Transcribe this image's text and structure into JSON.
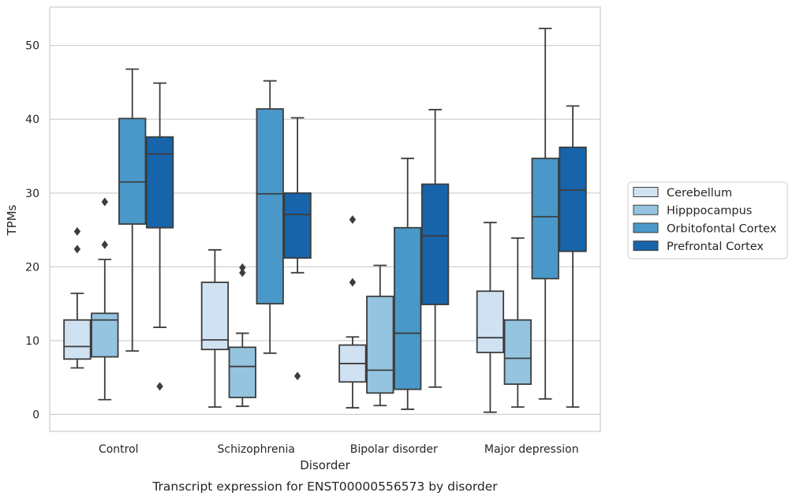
{
  "chart_data": {
    "type": "box",
    "caption": "Transcript expression for ENST00000556573 by disorder",
    "xlabel": "Disorder",
    "ylabel": "TPMs",
    "ylim": [
      -2.3,
      55.2
    ],
    "yticks": [
      0,
      10,
      20,
      30,
      40,
      50
    ],
    "grid": "horizontal",
    "legend_position": "right",
    "categories": [
      "Control",
      "Schizophrenia",
      "Bipolar disorder",
      "Major depression"
    ],
    "series": [
      {
        "name": "Cerebellum",
        "color": "#d0e1f2",
        "boxes": [
          {
            "whislo": 6.3,
            "q1": 7.5,
            "med": 9.2,
            "q3": 12.8,
            "whishi": 16.4,
            "fliers": [
              22.4,
              24.8
            ]
          },
          {
            "whislo": 1.0,
            "q1": 8.8,
            "med": 10.1,
            "q3": 17.9,
            "whishi": 22.3,
            "fliers": []
          },
          {
            "whislo": 0.9,
            "q1": 4.4,
            "med": 6.9,
            "q3": 9.4,
            "whishi": 10.5,
            "fliers": [
              17.9,
              26.4
            ]
          },
          {
            "whislo": 0.3,
            "q1": 8.4,
            "med": 10.4,
            "q3": 16.7,
            "whishi": 26.0,
            "fliers": []
          }
        ]
      },
      {
        "name": "Hipppocampus",
        "color": "#94c4df",
        "boxes": [
          {
            "whislo": 2.0,
            "q1": 7.8,
            "med": 12.8,
            "q3": 13.7,
            "whishi": 21.0,
            "fliers": [
              23.0,
              28.8
            ]
          },
          {
            "whislo": 1.1,
            "q1": 2.3,
            "med": 6.5,
            "q3": 9.1,
            "whishi": 11.0,
            "fliers": [
              19.2,
              19.9
            ]
          },
          {
            "whislo": 1.2,
            "q1": 2.9,
            "med": 6.0,
            "q3": 16.0,
            "whishi": 20.2,
            "fliers": []
          },
          {
            "whislo": 1.0,
            "q1": 4.1,
            "med": 7.6,
            "q3": 12.8,
            "whishi": 23.9,
            "fliers": []
          }
        ]
      },
      {
        "name": "Orbitofontal Cortex",
        "color": "#4a98c9",
        "boxes": [
          {
            "whislo": 8.6,
            "q1": 25.8,
            "med": 31.5,
            "q3": 40.1,
            "whishi": 46.8,
            "fliers": []
          },
          {
            "whislo": 8.3,
            "q1": 15.0,
            "med": 29.9,
            "q3": 41.4,
            "whishi": 45.2,
            "fliers": []
          },
          {
            "whislo": 0.7,
            "q1": 3.4,
            "med": 11.0,
            "q3": 25.3,
            "whishi": 34.7,
            "fliers": []
          },
          {
            "whislo": 2.1,
            "q1": 18.4,
            "med": 26.8,
            "q3": 34.7,
            "whishi": 52.3,
            "fliers": []
          }
        ]
      },
      {
        "name": "Prefrontal Cortex",
        "color": "#1764ab",
        "boxes": [
          {
            "whislo": 11.8,
            "q1": 25.3,
            "med": 35.3,
            "q3": 37.6,
            "whishi": 44.9,
            "fliers": [
              3.8
            ]
          },
          {
            "whislo": 19.2,
            "q1": 21.2,
            "med": 27.1,
            "q3": 30.0,
            "whishi": 40.2,
            "fliers": [
              5.2
            ]
          },
          {
            "whislo": 3.7,
            "q1": 14.9,
            "med": 24.2,
            "q3": 31.2,
            "whishi": 41.3,
            "fliers": []
          },
          {
            "whislo": 1.0,
            "q1": 22.1,
            "med": 30.4,
            "q3": 36.2,
            "whishi": 41.8,
            "fliers": []
          }
        ]
      }
    ]
  }
}
